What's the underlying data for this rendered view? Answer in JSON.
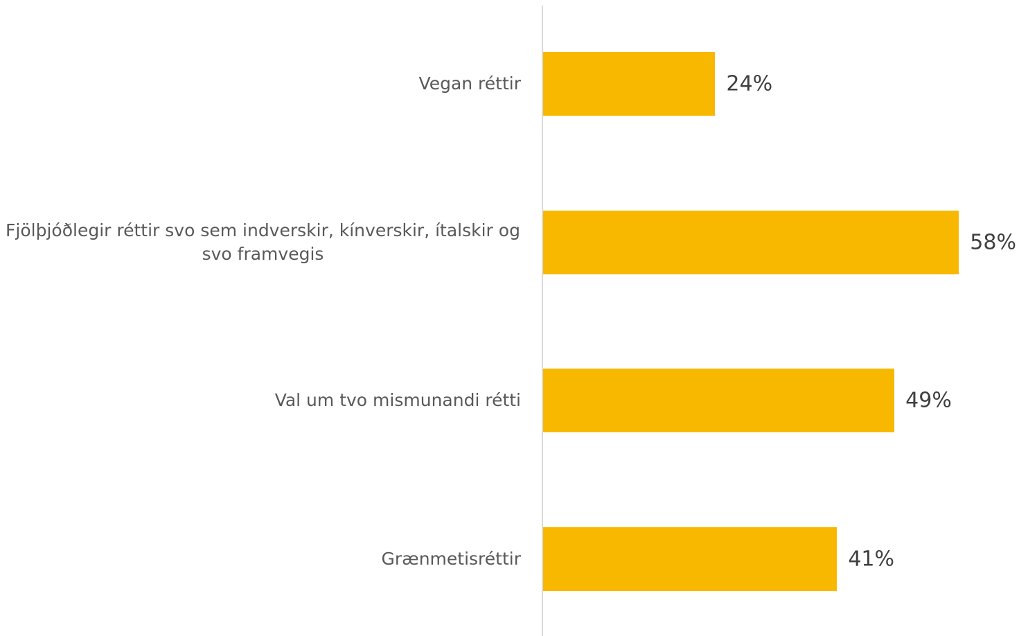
{
  "chart_data": {
    "type": "bar",
    "orientation": "horizontal",
    "categories": [
      "Vegan réttir",
      "Fjölþjóðlegir réttir svo sem indverskir, kínverskir, ítalskir og svo framvegis",
      "Val um tvo mismunandi rétti",
      "Grænmetisréttir"
    ],
    "values": [
      24,
      58,
      49,
      41
    ],
    "value_labels": [
      "24%",
      "58%",
      "49%",
      "41%"
    ],
    "color": "#f9b800",
    "xlim": [
      0,
      100
    ]
  }
}
